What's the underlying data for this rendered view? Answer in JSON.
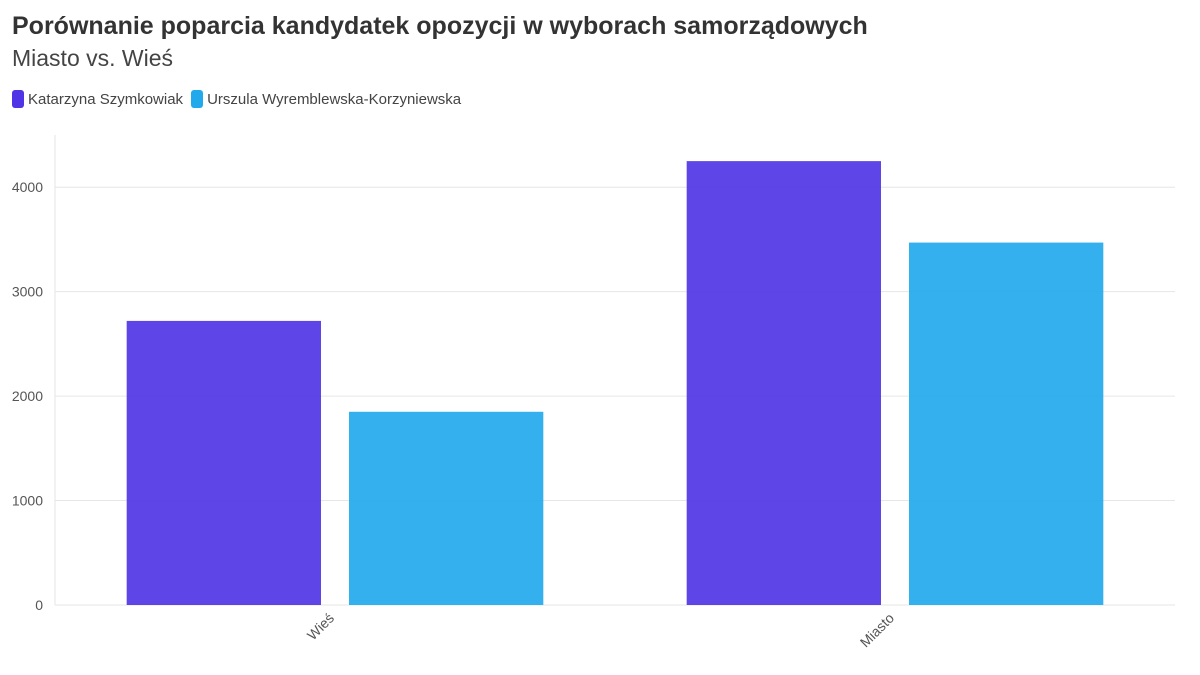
{
  "colors": {
    "series1": "#4f35e6",
    "series2": "#22a9ec",
    "grid": "#e6e6e6",
    "axis": "#cccccc"
  },
  "chart_data": {
    "type": "bar",
    "title": "Porównanie poparcia kandydatek opozycji w wyborach samorządowych",
    "subtitle": "Miasto vs. Wieś",
    "categories": [
      "Wieś",
      "Miasto"
    ],
    "series": [
      {
        "name": "Katarzyna Szymkowiak",
        "values": [
          2720,
          4250
        ]
      },
      {
        "name": "Urszula Wyremblewska-Korzyniewska",
        "values": [
          1850,
          3470
        ]
      }
    ],
    "xlabel": "",
    "ylabel": "",
    "ylim": [
      0,
      4500
    ],
    "yticks": [
      0,
      1000,
      2000,
      3000,
      4000
    ],
    "grid": true,
    "legend": "top-left"
  }
}
